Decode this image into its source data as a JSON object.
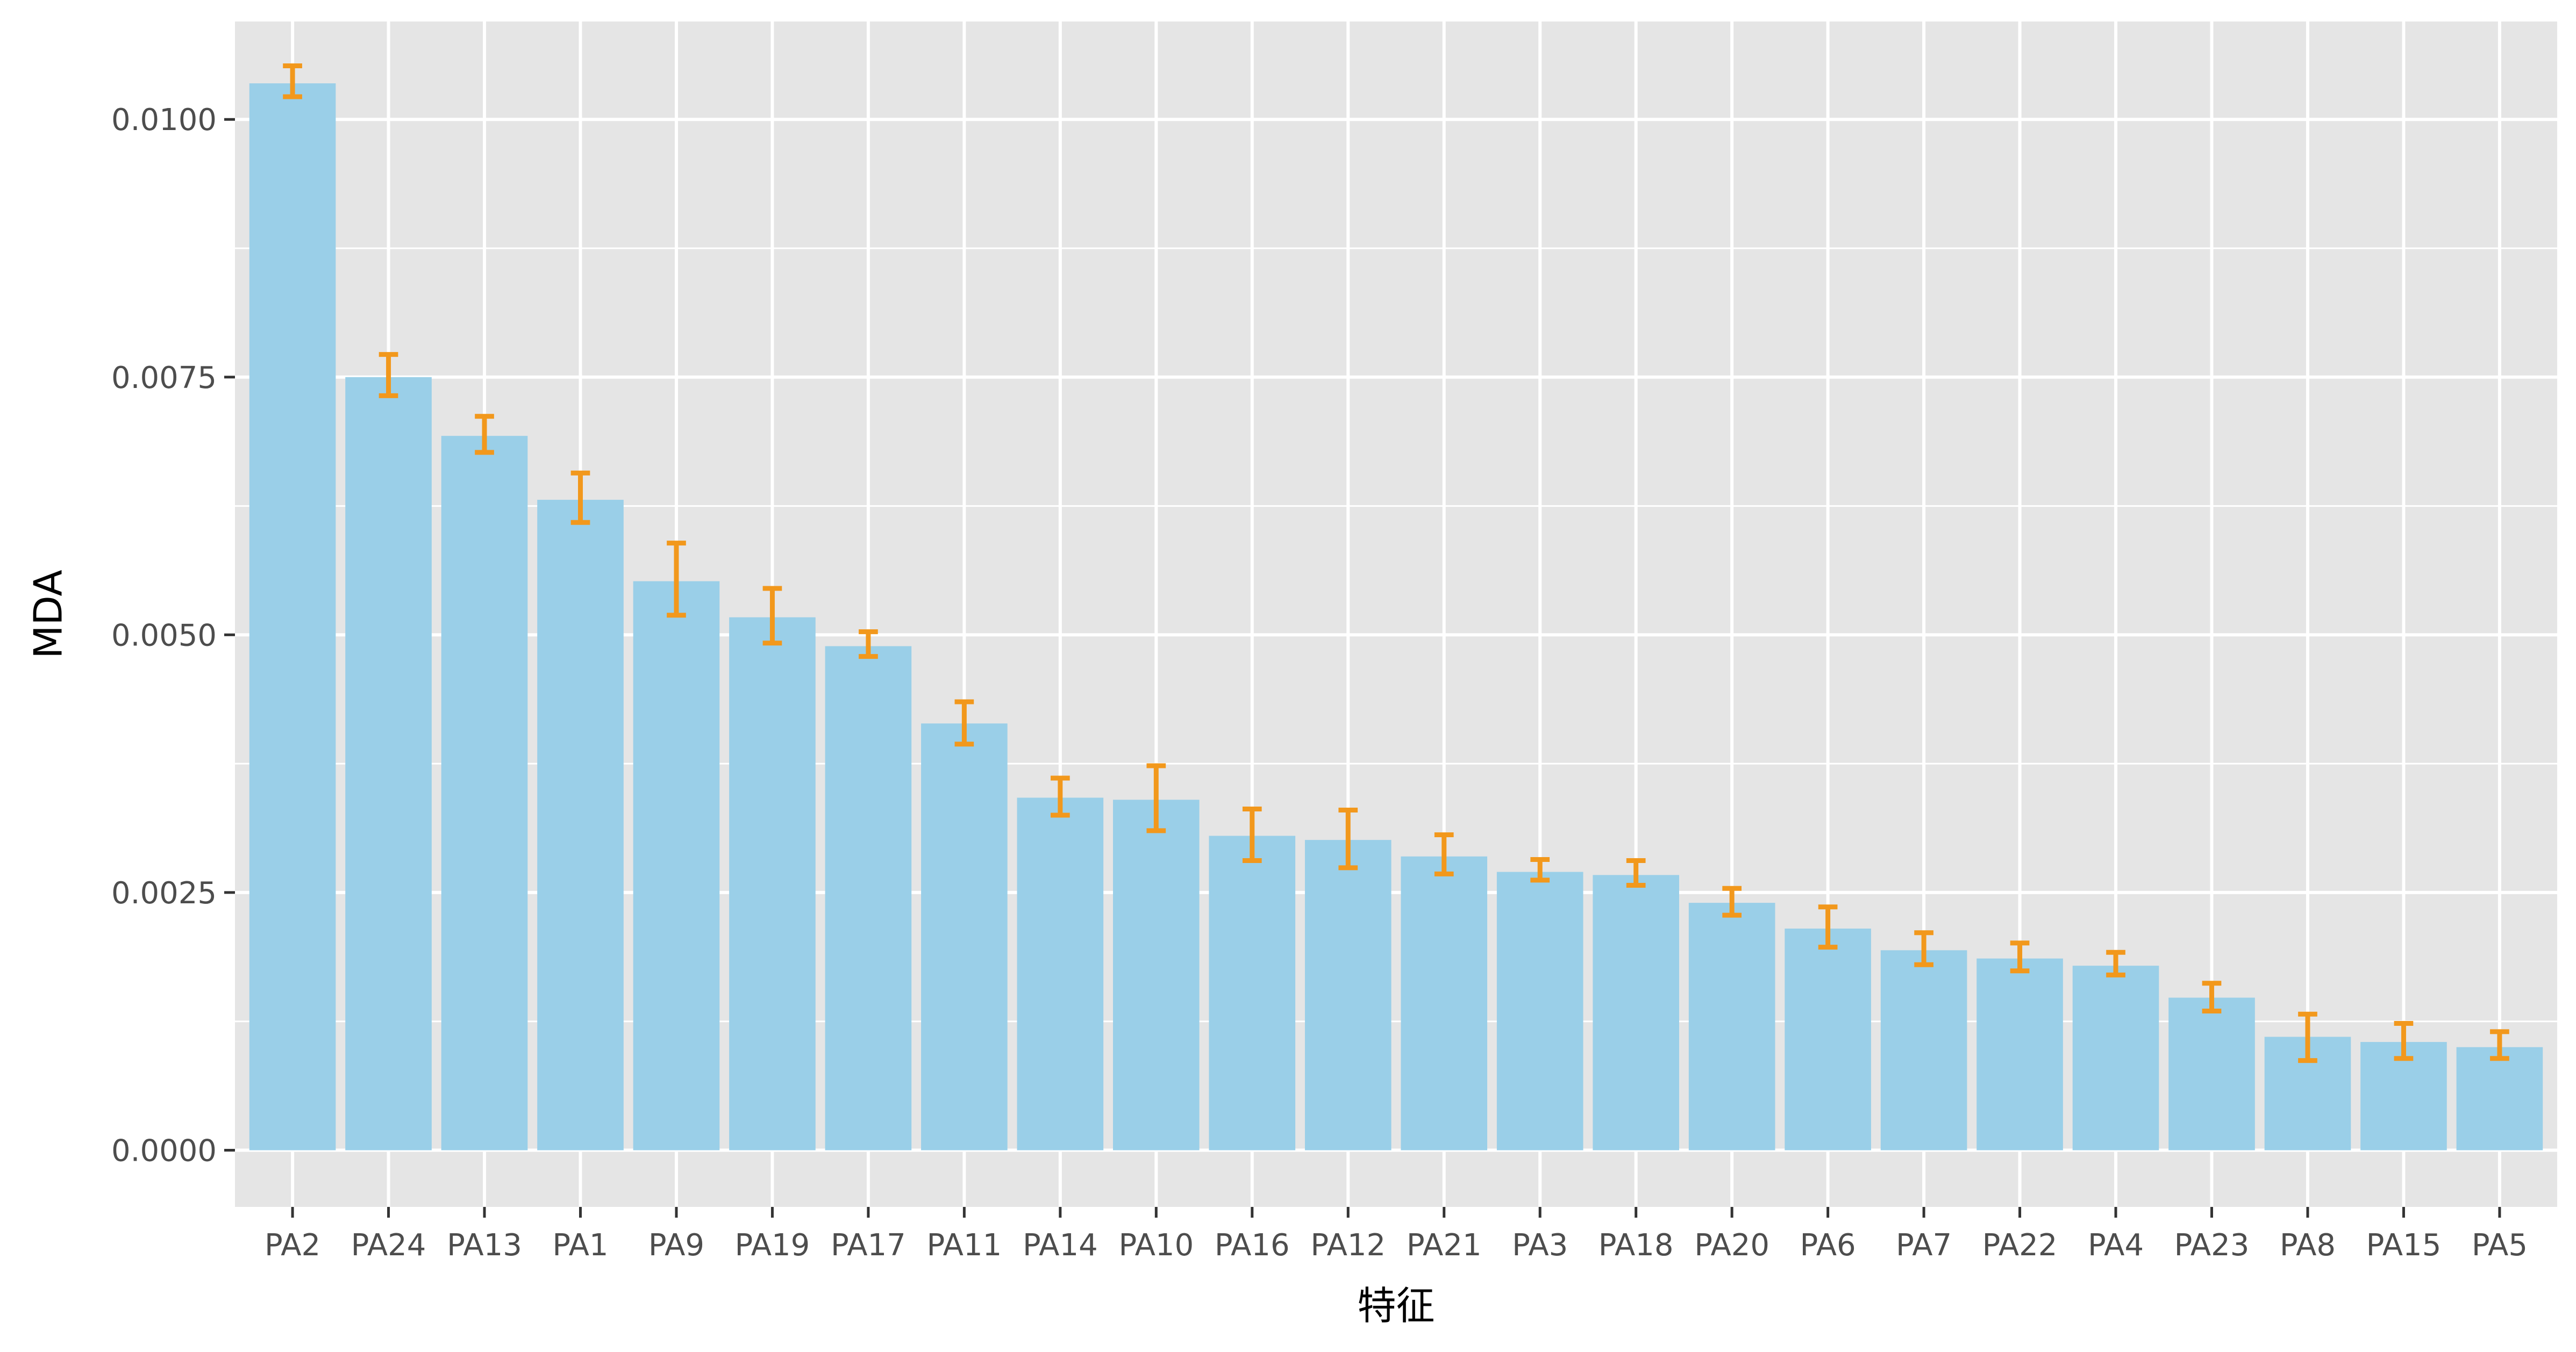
{
  "chart_data": {
    "type": "bar",
    "title": "",
    "xlabel": "特征",
    "ylabel": "MDA",
    "ylim": [
      -0.00055,
      0.01095
    ],
    "yticks": [
      0.0,
      0.0025,
      0.005,
      0.0075,
      0.01
    ],
    "yticklabels": [
      "0.0000",
      "0.0025",
      "0.0050",
      "0.0075",
      "0.0100"
    ],
    "grid": true,
    "legend": "none",
    "categories": [
      "PA2",
      "PA24",
      "PA13",
      "PA1",
      "PA9",
      "PA19",
      "PA17",
      "PA11",
      "PA14",
      "PA10",
      "PA16",
      "PA12",
      "PA21",
      "PA3",
      "PA18",
      "PA20",
      "PA6",
      "PA7",
      "PA22",
      "PA4",
      "PA23",
      "PA8",
      "PA15",
      "PA5"
    ],
    "values": [
      0.01035,
      0.0075,
      0.00693,
      0.00631,
      0.00552,
      0.00517,
      0.00489,
      0.00414,
      0.00342,
      0.0034,
      0.00305,
      0.00301,
      0.00285,
      0.0027,
      0.00267,
      0.0024,
      0.00215,
      0.00194,
      0.00186,
      0.00179,
      0.00148,
      0.0011,
      0.00105,
      0.001
    ],
    "error_low": [
      0.01022,
      0.00732,
      0.00677,
      0.00609,
      0.00519,
      0.00492,
      0.00479,
      0.00394,
      0.00325,
      0.0031,
      0.00281,
      0.00274,
      0.00268,
      0.00262,
      0.00257,
      0.00228,
      0.00197,
      0.0018,
      0.00174,
      0.0017,
      0.00135,
      0.00087,
      0.00089,
      0.00089
    ],
    "error_high": [
      0.01052,
      0.00772,
      0.00712,
      0.00657,
      0.00589,
      0.00545,
      0.00503,
      0.00435,
      0.00361,
      0.00373,
      0.00331,
      0.0033,
      0.00306,
      0.00282,
      0.00281,
      0.00254,
      0.00236,
      0.00211,
      0.00201,
      0.00192,
      0.00162,
      0.00132,
      0.00123,
      0.00115
    ],
    "colors": {
      "panel": "#e5e5e5",
      "grid_major": "#ffffff",
      "bar_fill": "#9acfe8",
      "error_bar": "#f2981c",
      "tick": "#333333"
    }
  }
}
